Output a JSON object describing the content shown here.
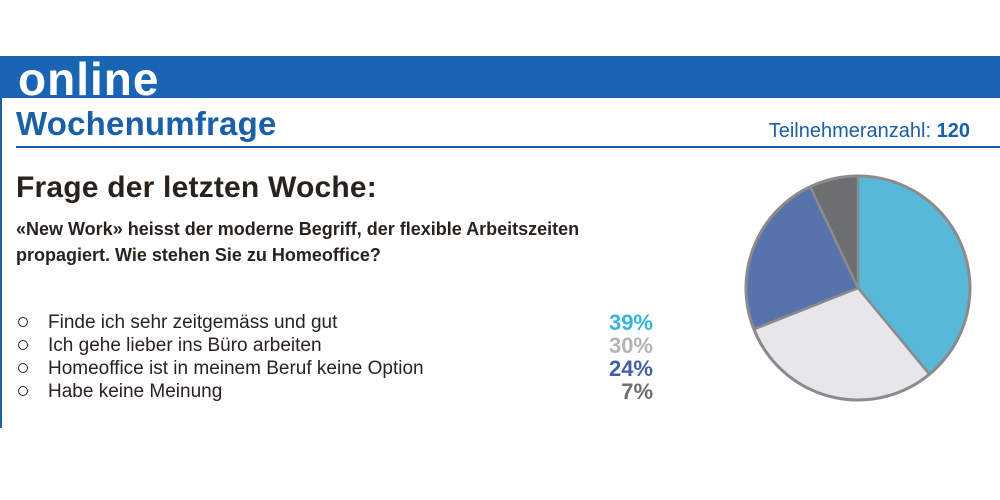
{
  "header": {
    "banner_word": "online",
    "title": "Wochenumfrage",
    "participants_label": "Teilnehmeranzahl:",
    "participants_count": "120"
  },
  "question": {
    "heading": "Frage der letzten Woche:",
    "text": "«New Work» heisst der moderne Begriff, der flexible Arbeitszeiten propagiert. Wie stehen Sie zu Homeoffice?"
  },
  "colors": {
    "brand_blue": "#1a64b4",
    "text_dark": "#2a221d"
  },
  "chart_data": {
    "type": "pie",
    "categories": [
      "Finde ich sehr zeitgemäss und gut",
      "Ich gehe lieber ins Büro arbeiten",
      "Homeoffice ist in meinem Beruf keine Option",
      "Habe keine Meinung"
    ],
    "values": [
      39,
      30,
      24,
      7
    ],
    "labels": [
      "39%",
      "30%",
      "24%",
      "7%"
    ],
    "colors": [
      "#57b8d8",
      "#e7e6eb",
      "#5872ac",
      "#6d6e70"
    ],
    "label_colors": [
      "#35b6dc",
      "#b4b4b6",
      "#3f5fa9",
      "#6d6e70"
    ],
    "start_angle_deg": 0,
    "direction": "clockwise",
    "legend": "left"
  }
}
